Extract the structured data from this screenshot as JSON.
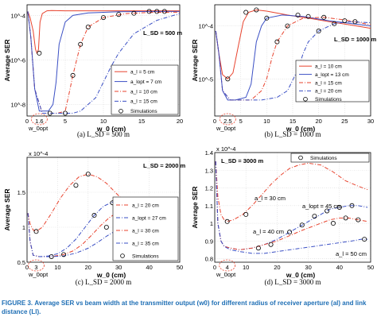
{
  "chart_data": [
    {
      "type": "line",
      "ylabel": "Average SER",
      "xlabel": "w_0 (cm)",
      "xlim": [
        0,
        20
      ],
      "ylog": true,
      "ylim": [
        3e-09,
        0.0003
      ],
      "xticks": [
        "0",
        "5",
        "10",
        "15",
        "20"
      ],
      "yticks": [
        {
          "label": "10^-4",
          "v": 0.0001
        },
        {
          "label": "10^-6",
          "v": 1e-06
        },
        {
          "label": "10^-8",
          "v": 1e-08
        }
      ],
      "note": "L_SD = 500 m",
      "opt_label": "w_0opt",
      "opt_value": "1.6",
      "legend_pos": "middle-right",
      "caption": "(a) L_SD = 500 m",
      "series": [
        {
          "name": "a_l = 5 cm",
          "color": "#e8432e",
          "dash": "",
          "x": [
            0.1,
            0.4,
            0.8,
            1.1,
            1.3,
            1.5,
            1.7,
            2.0,
            2.6,
            3.2,
            5,
            8,
            12,
            16,
            20
          ],
          "y": [
            0.00015,
            8e-05,
            2e-05,
            3e-06,
            2e-06,
            3e-06,
            5e-05,
            0.00012,
            0.00016,
            0.000165,
            0.00016,
            0.00016,
            0.00016,
            0.00016,
            0.00016
          ]
        },
        {
          "name": "a_lopt = 7 cm",
          "color": "#3a4fc4",
          "dash": "",
          "x": [
            0.1,
            0.5,
            1.0,
            1.6,
            2.2,
            2.8,
            3.4,
            3.8,
            4.2,
            5,
            6,
            8,
            12,
            16,
            20
          ],
          "y": [
            0.00015,
            1e-05,
            5e-08,
            5e-09,
            5e-09,
            5e-09,
            1e-08,
            1e-07,
            5e-06,
            5e-05,
            0.0001,
            0.00013,
            0.000145,
            0.00015,
            0.00015
          ]
        },
        {
          "name": "a_l = 10 cm",
          "color": "#e8432e",
          "dash": "5,2,1,2",
          "x": [
            0.1,
            0.5,
            1.0,
            2,
            3,
            4,
            5,
            5.5,
            6,
            7,
            8,
            10,
            13,
            16,
            20
          ],
          "y": [
            0.00015,
            1e-05,
            5e-08,
            4e-09,
            4e-09,
            4e-09,
            5e-09,
            3e-08,
            2e-07,
            5e-06,
            3e-05,
            8e-05,
            0.00012,
            0.000135,
            0.00014
          ]
        },
        {
          "name": "a_l = 15 cm",
          "color": "#3a4fc4",
          "dash": "5,2,1,2",
          "x": [
            0.1,
            0.5,
            1.0,
            2,
            4,
            6,
            7,
            8,
            9,
            10,
            11,
            12,
            14,
            17,
            20
          ],
          "y": [
            0.00015,
            1e-05,
            5e-08,
            4e-09,
            4e-09,
            4e-09,
            5e-09,
            1e-08,
            2e-08,
            1e-07,
            5e-07,
            2e-06,
            1.5e-05,
            6e-05,
            0.00012
          ]
        }
      ],
      "sim_x": [
        1.6,
        3,
        5,
        6,
        7,
        8,
        10,
        12,
        14,
        16,
        17,
        18
      ],
      "sim_y": [
        2e-06,
        4e-09,
        4e-09,
        2e-07,
        5e-06,
        3e-05,
        8e-05,
        0.00011,
        0.000125,
        0.00015,
        0.00015,
        0.00015
      ]
    },
    {
      "type": "line",
      "ylabel": "Average SER",
      "xlabel": "w_0 (cm)",
      "xlim": [
        0,
        30
      ],
      "ylog": true,
      "ylim": [
        2e-06,
        0.00025
      ],
      "xticks": [
        "0",
        "5",
        "10",
        "15",
        "20",
        "25",
        "30"
      ],
      "yticks": [
        {
          "label": "10^-4",
          "v": 0.0001
        },
        {
          "label": "10^-5",
          "v": 1e-05
        }
      ],
      "note": "L_SD = 1000 m",
      "opt_label": "w_0opt",
      "opt_value": "2.5",
      "legend_pos": "middle-right",
      "caption": "(b) L_SD = 1000 m",
      "series": [
        {
          "name": "a_l = 10 cm",
          "color": "#e8432e",
          "dash": "",
          "x": [
            0.2,
            0.8,
            1.5,
            2.5,
            3.5,
            4.5,
            5.5,
            6.5,
            8,
            10,
            14,
            18,
            22,
            26,
            30
          ],
          "y": [
            8e-05,
            3e-05,
            1.2e-05,
            1e-05,
            1.3e-05,
            4e-05,
            0.00012,
            0.00018,
            0.0002,
            0.00019,
            0.00016,
            0.00014,
            0.00012,
            0.000105,
            9e-05
          ]
        },
        {
          "name": "a_lopt = 13 cm",
          "color": "#3a4fc4",
          "dash": "",
          "x": [
            0.2,
            0.8,
            1.5,
            2.5,
            4,
            6,
            7,
            7.5,
            8,
            9,
            10,
            13,
            17,
            22,
            30
          ],
          "y": [
            8e-05,
            3e-05,
            6e-06,
            4e-06,
            4e-06,
            4.5e-06,
            8e-06,
            2e-05,
            5e-05,
            0.0001,
            0.00014,
            0.00016,
            0.00015,
            0.000125,
            0.0001
          ]
        },
        {
          "name": "a_l = 15 cm",
          "color": "#e8432e",
          "dash": "5,2,1,2",
          "x": [
            0.2,
            0.8,
            1.5,
            3,
            5,
            7,
            9,
            10,
            11,
            12,
            14,
            17,
            21,
            25,
            30
          ],
          "y": [
            8e-05,
            3e-05,
            6e-06,
            4e-06,
            4e-06,
            4e-06,
            6e-06,
            1e-05,
            2.5e-05,
            5e-05,
            0.0001,
            0.00014,
            0.000145,
            0.00013,
            0.000105
          ]
        },
        {
          "name": "a_l = 20 cm",
          "color": "#3a4fc4",
          "dash": "5,2,1,2",
          "x": [
            0.2,
            0.8,
            1.5,
            3,
            6,
            9,
            12,
            14,
            16,
            17,
            18,
            20,
            23,
            26,
            30
          ],
          "y": [
            8e-05,
            3e-05,
            6e-06,
            4e-06,
            4e-06,
            4e-06,
            4.5e-06,
            6e-06,
            1.5e-05,
            3e-05,
            5e-05,
            8e-05,
            0.00011,
            0.00012,
            0.000115
          ]
        }
      ],
      "sim_x": [
        2.5,
        6,
        8,
        10,
        12,
        14,
        16,
        18,
        20,
        21,
        23,
        25,
        27
      ],
      "sim_y": [
        1e-05,
        0.00018,
        0.0002,
        0.00014,
        5e-05,
        0.0001,
        0.00016,
        0.00015,
        8e-05,
        0.000145,
        0.00011,
        0.000125,
        0.00012
      ]
    },
    {
      "type": "line",
      "ylabel": "Average SER",
      "xlabel": "w_0 (cm)",
      "xlim": [
        0,
        50
      ],
      "ylim": [
        5e-05,
        0.0002
      ],
      "yexp": "x 10^-4",
      "xticks": [
        "0",
        "10",
        "20",
        "30",
        "40",
        "50"
      ],
      "yticks": [
        {
          "label": "0.5",
          "v": 5e-05
        },
        {
          "label": "1",
          "v": 0.0001
        },
        {
          "label": "1.5",
          "v": 0.00015
        }
      ],
      "note": "L_SD = 2000 m",
      "opt_label": "w_0opt",
      "opt_value": "3",
      "legend_pos": "lower-right",
      "caption": "(c) L_SD = 2000 m",
      "series": [
        {
          "name": "a_l = 20 cm",
          "color": "#e8432e",
          "dash": "5,2,1,2",
          "x": [
            0.3,
            1,
            2,
            3,
            5,
            8,
            11,
            14,
            17,
            20,
            23,
            26,
            30,
            35,
            40,
            45,
            49
          ],
          "y": [
            0.00012,
            0.000105,
            9.6e-05,
            9.4e-05,
            0.0001,
            0.00012,
            0.000142,
            0.00016,
            0.000172,
            0.000176,
            0.000172,
            0.000163,
            0.000145,
            0.000125,
            0.00011,
            0.0001,
            9.8e-05
          ]
        },
        {
          "name": "a_lopt = 27 cm",
          "color": "#3a4fc4",
          "dash": "5,2,1,2",
          "x": [
            0.3,
            1,
            2,
            4,
            7,
            10,
            13,
            16,
            19,
            22,
            25,
            28,
            31,
            35,
            40,
            45,
            49
          ],
          "y": [
            0.00012,
            8e-05,
            6e-05,
            5.8e-05,
            5.9e-05,
            6.2e-05,
            7e-05,
            8.3e-05,
            0.0001,
            0.000117,
            0.00013,
            0.000136,
            0.000137,
            0.00013,
            0.000118,
            0.000107,
            0.000102
          ]
        },
        {
          "name": "a_l = 30 cm",
          "color": "#e8432e",
          "dash": "5,2,1,2",
          "x": [
            0.3,
            1,
            2,
            4,
            8,
            12,
            15,
            18,
            21,
            24,
            27,
            30,
            33,
            36,
            40,
            45,
            49
          ],
          "y": [
            0.00012,
            8e-05,
            6e-05,
            5.8e-05,
            5.8e-05,
            6.1e-05,
            6.6e-05,
            7.5e-05,
            8.8e-05,
            0.000102,
            0.000114,
            0.000122,
            0.000124,
            0.00012,
            0.000112,
            0.000103,
            9.9e-05
          ]
        },
        {
          "name": "a_l = 35 cm",
          "color": "#3a4fc4",
          "dash": "5,2,1,2",
          "x": [
            0.3,
            1,
            2,
            4,
            8,
            12,
            16,
            20,
            23,
            26,
            29,
            32,
            35,
            38,
            42,
            46,
            49
          ],
          "y": [
            0.00012,
            8e-05,
            6e-05,
            5.8e-05,
            5.8e-05,
            5.9e-05,
            6.3e-05,
            7e-05,
            7.8e-05,
            8.7e-05,
            9.5e-05,
            0.0001,
            0.000102,
            0.000101,
            9.8e-05,
            9.5e-05,
            9.4e-05
          ]
        }
      ],
      "sim_x": [
        3,
        8,
        12,
        16,
        20,
        22,
        26,
        28,
        30,
        34,
        38,
        40,
        44,
        46,
        48
      ],
      "sim_y": [
        9.4e-05,
        5.8e-05,
        6.1e-05,
        0.00016,
        0.000176,
        0.000117,
        0.0001,
        0.000135,
        0.000122,
        0.00012,
        0.000108,
        0.000112,
        0.0001,
        0.000103,
        9.6e-05
      ]
    },
    {
      "type": "line",
      "ylabel": "Average SER",
      "xlabel": "w_0 (cm)",
      "xlim": [
        0,
        50
      ],
      "ylim": [
        7.8e-05,
        0.00014
      ],
      "yexp": "x 10^-4",
      "xticks": [
        "0",
        "10",
        "20",
        "30",
        "40",
        "50"
      ],
      "yticks": [
        {
          "label": "0.8",
          "v": 8e-05
        },
        {
          "label": "0.9",
          "v": 9e-05
        },
        {
          "label": "1",
          "v": 0.0001
        },
        {
          "label": "1.1",
          "v": 0.00011
        },
        {
          "label": "1.2",
          "v": 0.00012
        },
        {
          "label": "1.3",
          "v": 0.00013
        },
        {
          "label": "1.4",
          "v": 0.00014
        }
      ],
      "note": "L_SD = 3000 m",
      "opt_label": "w_0opt",
      "opt_value": "4",
      "legend_pos": "top-right",
      "caption": "(d) L_SD = 3000 m",
      "annotations": [
        {
          "text": "a_l = 30 cm"
        },
        {
          "text": "a_lopt = 45 cm"
        },
        {
          "text": "a_l = 40 cm"
        },
        {
          "text": "a_l = 50 cm"
        }
      ],
      "series": [
        {
          "name": "a_l = 30 cm",
          "color": "#e8432e",
          "dash": "5,2,1,2",
          "x": [
            0.3,
            1,
            2,
            3,
            4,
            6,
            9,
            12,
            15,
            18,
            21,
            24,
            27,
            30,
            34,
            38,
            42,
            46,
            49
          ],
          "y": [
            0.000135,
            0.000115,
            0.000105,
            0.000102,
            0.000101,
            0.000102,
            0.000105,
            0.00011,
            0.000116,
            0.000122,
            0.000127,
            0.000131,
            0.000133,
            0.000134,
            0.000133,
            0.000129,
            0.000124,
            0.000121,
            0.000119
          ]
        },
        {
          "name": "a_lopt = 45 cm",
          "color": "#3a4fc4",
          "dash": "5,2,1,2",
          "x": [
            0.3,
            1,
            2,
            3,
            5,
            8,
            12,
            16,
            20,
            24,
            28,
            31,
            34,
            37,
            40,
            43,
            46,
            49
          ],
          "y": [
            0.000135,
            0.0001,
            9e-05,
            8.7e-05,
            8.6e-05,
            8.5e-05,
            8.6e-05,
            8.8e-05,
            9.1e-05,
            9.5e-05,
            9.9e-05,
            0.000102,
            0.000105,
            0.000108,
            0.000109,
            0.00011,
            0.00011,
            0.000109
          ]
        },
        {
          "name": "a_l = 40 cm",
          "color": "#e8432e",
          "dash": "5,2,1,2",
          "x": [
            0.3,
            1,
            2,
            3,
            5,
            8,
            12,
            16,
            20,
            24,
            28,
            31,
            34,
            37,
            40,
            43,
            46,
            49
          ],
          "y": [
            0.000135,
            0.0001,
            9e-05,
            8.7e-05,
            8.6e-05,
            8.5e-05,
            8.6e-05,
            8.8e-05,
            9e-05,
            9.3e-05,
            9.6e-05,
            9.8e-05,
            0.0001,
            0.000102,
            0.000103,
            0.000103,
            0.000102,
            0.000101
          ]
        },
        {
          "name": "a_l = 50 cm",
          "color": "#3a4fc4",
          "dash": "5,2,1,2",
          "x": [
            0.3,
            1,
            2,
            3,
            5,
            8,
            12,
            16,
            20,
            24,
            28,
            32,
            36,
            40,
            44,
            47,
            49
          ],
          "y": [
            0.000135,
            0.0001,
            9e-05,
            8.7e-05,
            8.5e-05,
            8.4e-05,
            8.3e-05,
            8.3e-05,
            8.4e-05,
            8.5e-05,
            8.6e-05,
            8.7e-05,
            8.8e-05,
            8.9e-05,
            9e-05,
            9.1e-05,
            9.1e-05
          ]
        }
      ],
      "sim_x": [
        4,
        10,
        14,
        18,
        24,
        28,
        32,
        36,
        38,
        40,
        42,
        44,
        46,
        48
      ],
      "sim_y": [
        0.000101,
        0.000105,
        8.6e-05,
        8.8e-05,
        9.5e-05,
        9.9e-05,
        0.000104,
        0.000107,
        0.0001,
        0.000109,
        0.000103,
        0.00011,
        0.000102,
        9.1e-05
      ]
    }
  ],
  "legend": {
    "sim_label": "Simulations"
  },
  "figure_caption": {
    "label": "FIGURE 3.",
    "text": "Average SER vs beam width at the transmitter output (w0) for different radius of receiver aperture (al) and link distance (Ll)."
  }
}
